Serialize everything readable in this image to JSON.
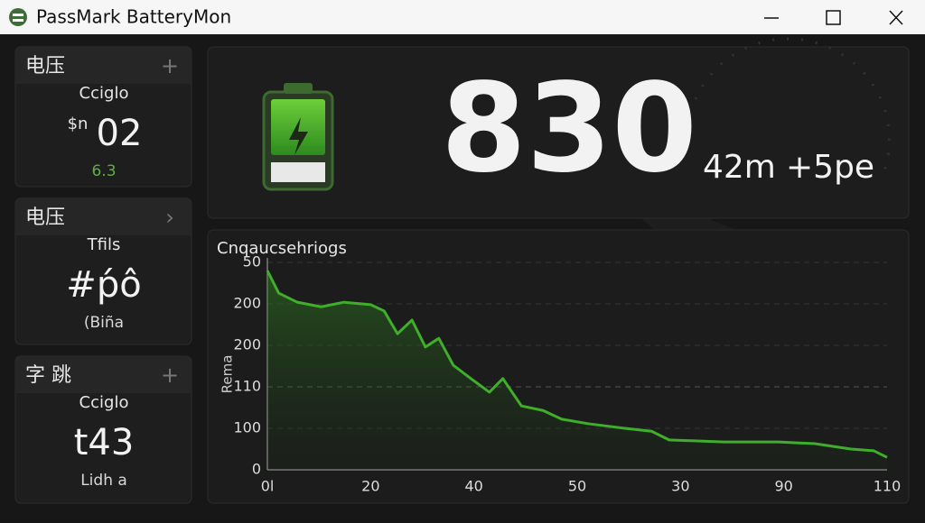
{
  "window": {
    "title": "PassMark BatteryMon"
  },
  "cards": [
    {
      "heading": "电压",
      "subtitle": "Cciglo",
      "prefix": "$n",
      "value": "02",
      "footer": "6.3"
    },
    {
      "heading": "电压",
      "subtitle": "Tfils",
      "value": "#ṕô",
      "footer": "(Biña"
    },
    {
      "heading": "字 跳",
      "subtitle": "Cciglo",
      "value": "t43",
      "footer": "Lidh a"
    }
  ],
  "status": {
    "value": "830",
    "time": "42m",
    "rate": "+5pe"
  },
  "chart": {
    "type": "line",
    "title": "Cnqaucsehriogs",
    "y_label": "Rema",
    "y_labels": [
      "0",
      "100",
      "110",
      "200",
      "200",
      "50"
    ],
    "x_labels": [
      "0l",
      "20",
      "40",
      "50",
      "30",
      "90",
      "110"
    ],
    "xlim": [
      0,
      6
    ],
    "ylim": [
      0,
      5
    ],
    "color": "#3fae2a",
    "x": [
      0,
      0.11,
      0.29,
      0.52,
      0.74,
      1.0,
      1.13,
      1.26,
      1.4,
      1.53,
      1.66,
      1.8,
      1.97,
      2.15,
      2.28,
      2.46,
      2.67,
      2.85,
      3.11,
      3.46,
      3.72,
      3.89,
      4.42,
      4.95,
      5.3,
      5.65,
      5.87,
      6.0
    ],
    "values": [
      4.8,
      4.26,
      4.04,
      3.93,
      4.04,
      3.98,
      3.83,
      3.28,
      3.61,
      2.96,
      3.17,
      2.52,
      2.2,
      1.87,
      2.2,
      1.54,
      1.43,
      1.22,
      1.11,
      1.0,
      0.93,
      0.72,
      0.67,
      0.67,
      0.63,
      0.5,
      0.46,
      0.3
    ]
  }
}
